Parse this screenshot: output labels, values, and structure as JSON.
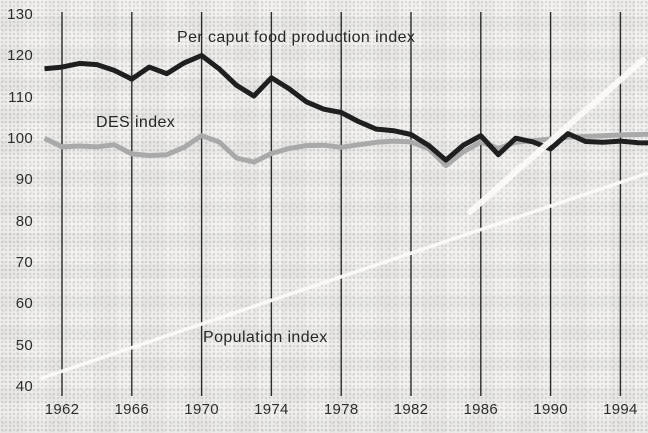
{
  "figure": {
    "kind": "scanned line chart",
    "line_colors": {
      "per_caput_food_production": "#1f1f1f",
      "des": "#a9a9a9"
    },
    "background": "#f3f2f0"
  },
  "chart_data": {
    "type": "line",
    "title": "",
    "xlabel": "",
    "ylabel": "",
    "xlim": [
      1961,
      1995.6
    ],
    "ylim": [
      40,
      130
    ],
    "xticks": [
      1962,
      1966,
      1970,
      1974,
      1978,
      1982,
      1986,
      1990,
      1994
    ],
    "yticks": [
      130,
      120,
      110,
      100,
      90,
      80,
      70,
      60,
      50,
      40
    ],
    "grid": "vertical-gridlines-only",
    "legend_position": "inline-labels-on-chart",
    "x": [
      1961,
      1962,
      1963,
      1964,
      1965,
      1966,
      1967,
      1968,
      1969,
      1970,
      1971,
      1972,
      1973,
      1974,
      1975,
      1976,
      1977,
      1978,
      1979,
      1980,
      1981,
      1982,
      1983,
      1984,
      1985,
      1986,
      1987,
      1988,
      1989,
      1990,
      1991,
      1992,
      1993,
      1994,
      1995,
      1996
    ],
    "series": [
      {
        "name": "Per caput food production index",
        "color": "#1f1f1f",
        "values": [
          117.0,
          117.4,
          118.3,
          118.0,
          116.6,
          114.5,
          117.4,
          115.8,
          118.4,
          120.2,
          117.0,
          113.0,
          110.4,
          114.8,
          112.2,
          109.0,
          107.2,
          106.4,
          104.2,
          102.4,
          102.0,
          101.1,
          98.5,
          94.9,
          98.5,
          100.8,
          96.2,
          100.2,
          99.3,
          97.6,
          101.3,
          99.4,
          99.2,
          99.5,
          99.1,
          99.0
        ]
      },
      {
        "name": "DES index",
        "color": "#a9a9a9",
        "values": [
          100.2,
          98.1,
          98.3,
          98.1,
          98.6,
          96.4,
          96.0,
          96.2,
          98.0,
          100.8,
          99.3,
          95.4,
          94.4,
          96.5,
          97.7,
          98.4,
          98.5,
          98.0,
          98.6,
          99.2,
          99.5,
          99.3,
          97.7,
          93.6,
          96.9,
          99.3,
          97.7,
          99.2,
          99.6,
          100.0,
          100.4,
          100.6,
          100.8,
          101.0,
          101.1,
          101.2
        ]
      }
    ],
    "annotations": [
      {
        "id": "production-label",
        "text": "Per caput food production index"
      },
      {
        "id": "des-label",
        "text": "DES index"
      },
      {
        "id": "population-label",
        "text": "Population index",
        "note": "label only; no visible line in image"
      }
    ]
  }
}
